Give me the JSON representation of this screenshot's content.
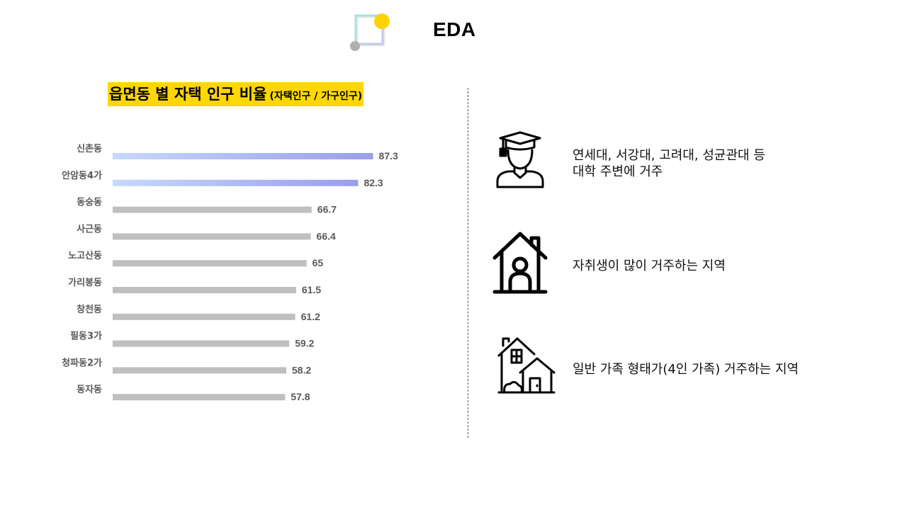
{
  "page": {
    "title": "EDA"
  },
  "chart_title": {
    "main": "읍면동 별 자택 인구 비율",
    "sub": "(자택인구 / 가구인구)"
  },
  "chart_data": {
    "type": "bar",
    "orientation": "horizontal",
    "categories": [
      "신촌동",
      "안암동4가",
      "동숭동",
      "사근동",
      "노고산동",
      "가리봉동",
      "창천동",
      "필동3가",
      "청파동2가",
      "동자동"
    ],
    "values": [
      87.3,
      82.3,
      66.7,
      66.4,
      65,
      61.5,
      61.2,
      59.2,
      58.2,
      57.8
    ],
    "value_labels": [
      "87.3",
      "82.3",
      "66.7",
      "66.4",
      "65",
      "61.5",
      "61.2",
      "59.2",
      "58.2",
      "57.8"
    ],
    "highlighted": [
      true,
      true,
      false,
      false,
      false,
      false,
      false,
      false,
      false,
      false
    ],
    "xlim": [
      0,
      100
    ],
    "grid": false,
    "colors": {
      "highlight_start": "#c6d9fb",
      "highlight_end": "#9a9ee8",
      "default": "#bfbfbf",
      "label": "#595959"
    }
  },
  "insights": [
    {
      "icon": "graduate-icon",
      "lines": [
        "연세대, 서강대, 고려대, 성균관대 등",
        "대학 주변에 거주"
      ]
    },
    {
      "icon": "house-person-icon",
      "lines": [
        "자취생이 많이 거주하는 지역"
      ]
    },
    {
      "icon": "family-house-icon",
      "lines": [
        "일반 가족 형태가(4인 가족) 거주하는 지역"
      ]
    }
  ],
  "colors": {
    "accent": "#ffd700",
    "logo_circle": "#ffd200"
  }
}
